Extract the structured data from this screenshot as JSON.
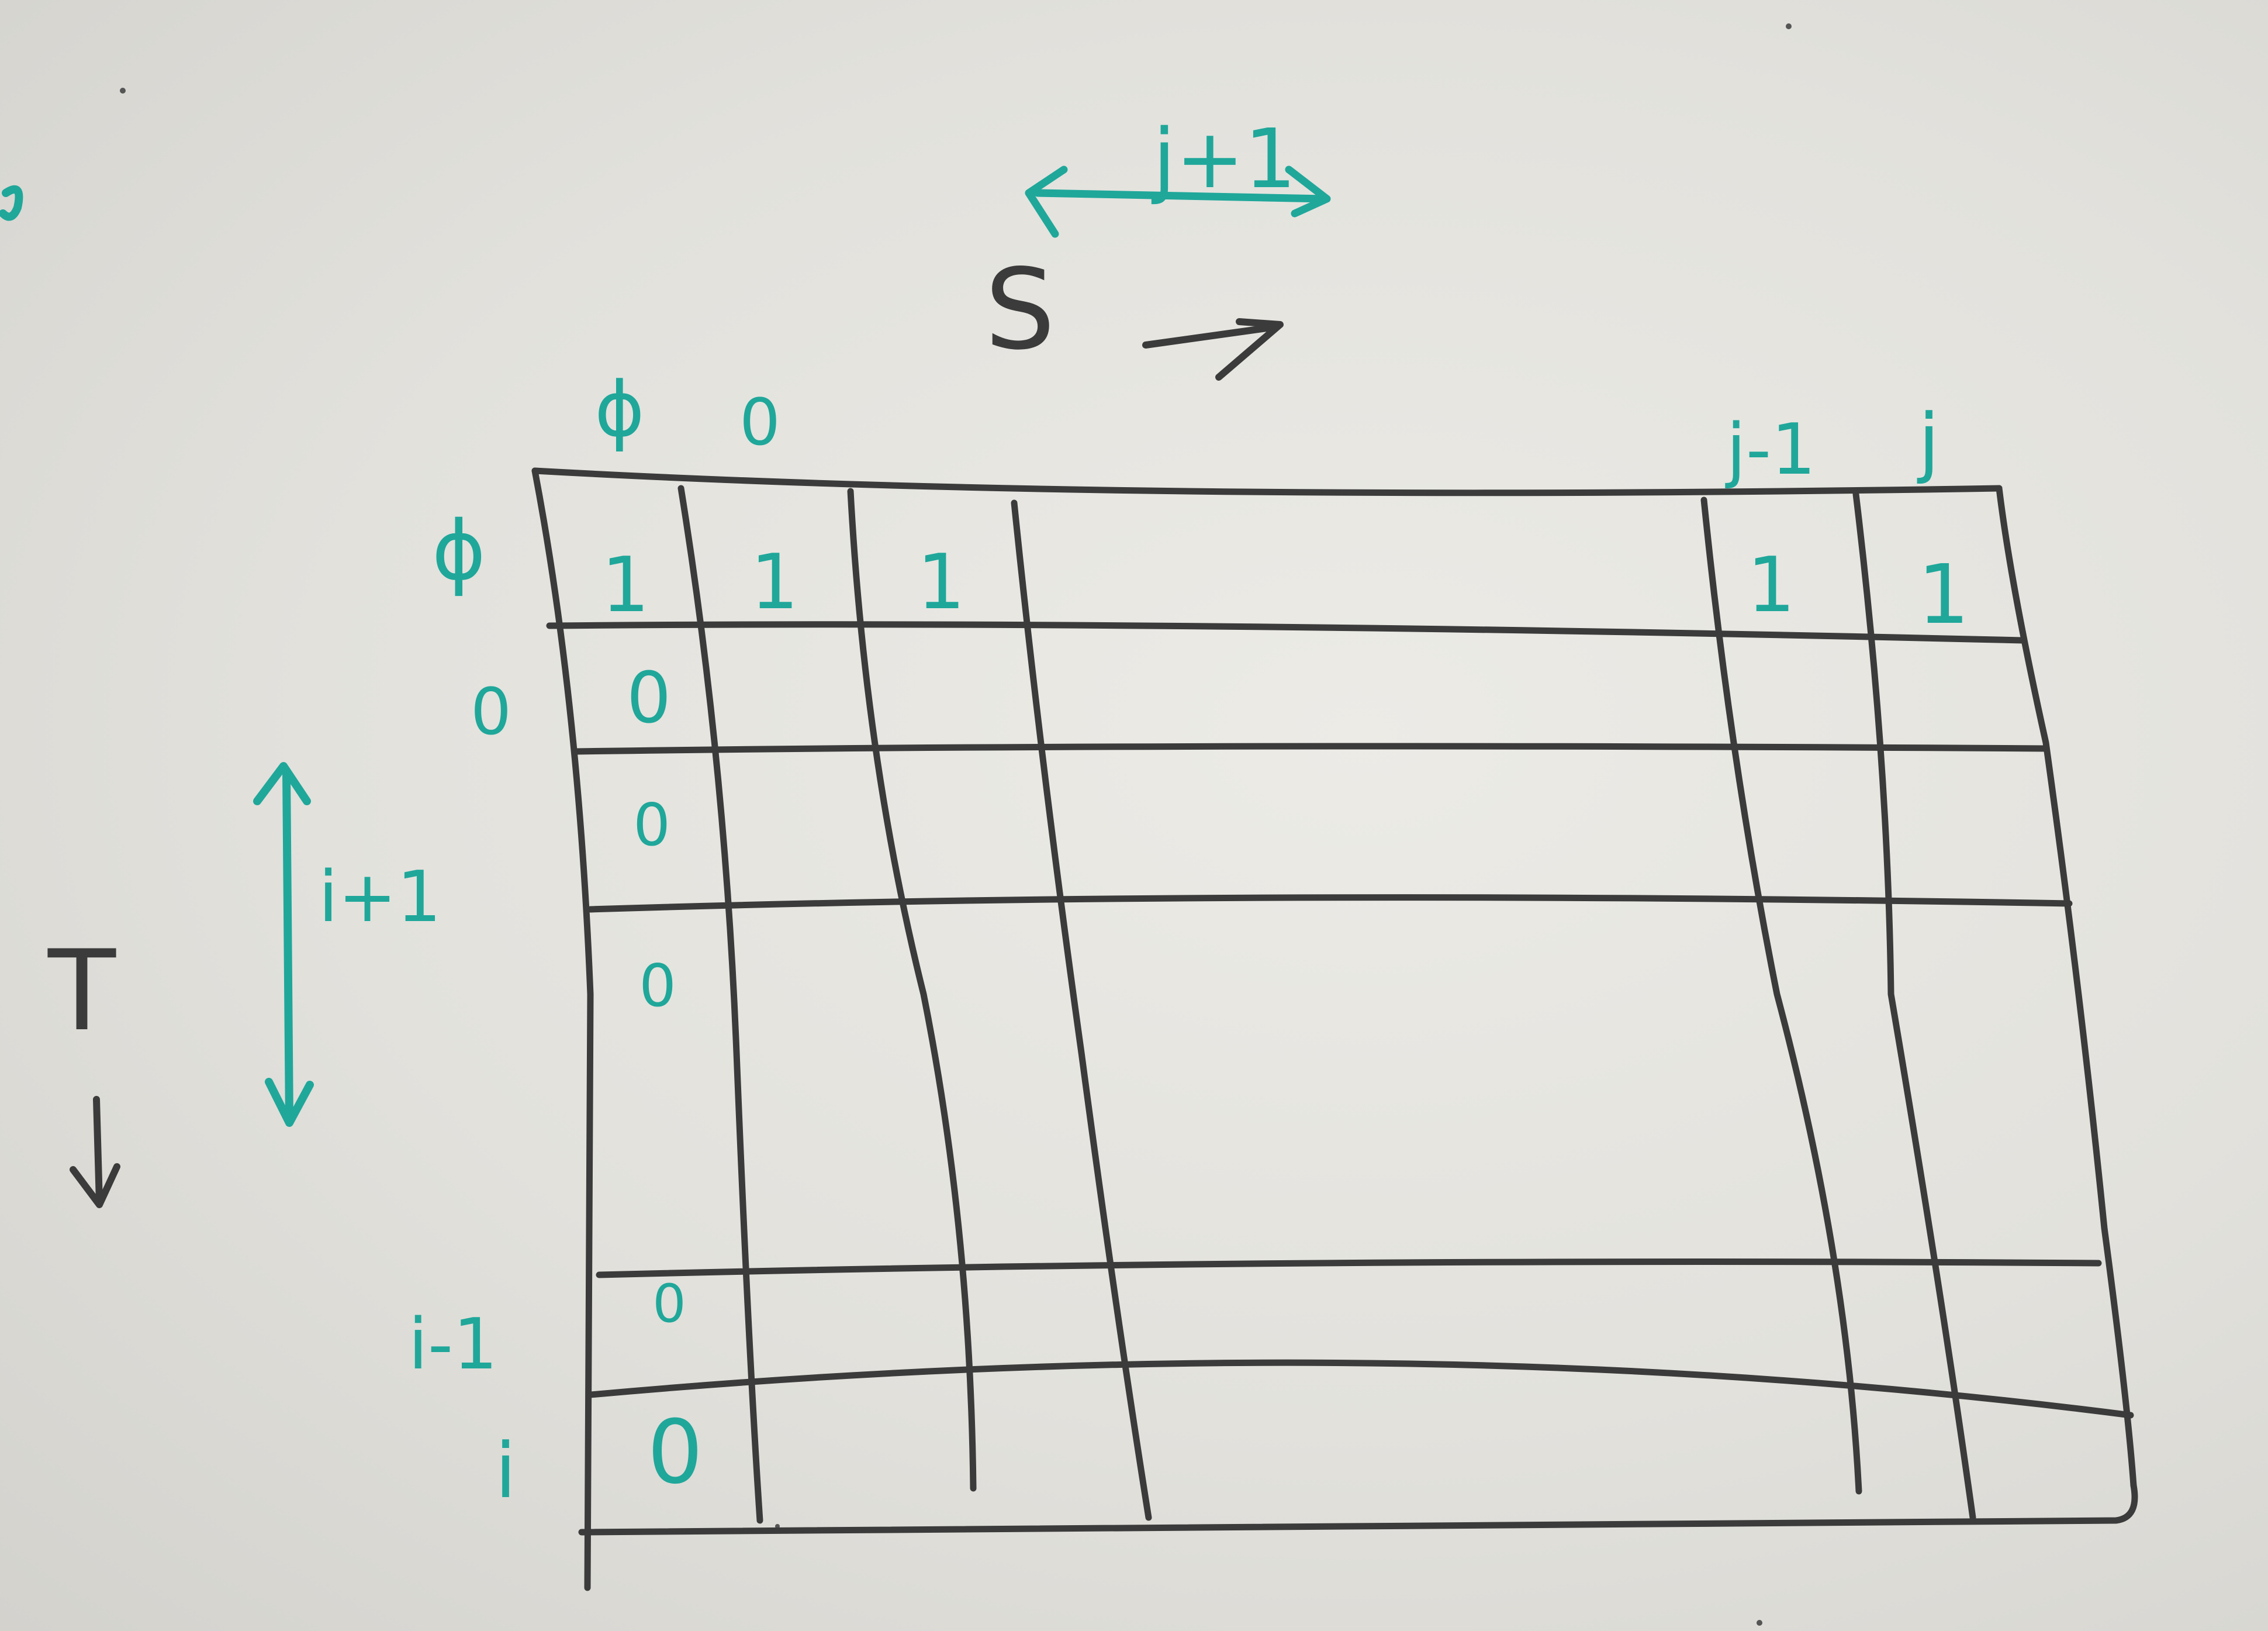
{
  "image": {
    "subject": "whiteboard-dp-table-sketch",
    "marker_colors": {
      "grid": "#3b3b3b",
      "labels": "#1fa79a",
      "board": "#e6e5e0"
    }
  },
  "labels": {
    "s_label": "S",
    "t_label": "T",
    "top_arrow_label": "j+1",
    "left_arrow_label": "i+1",
    "col_headers": [
      "ϕ",
      "0",
      "j-1",
      "j"
    ],
    "row_headers": [
      "ϕ",
      "0",
      "i-1",
      "i"
    ]
  },
  "cells": {
    "first_row_values": [
      "1",
      "1",
      "1",
      "1",
      "1"
    ],
    "first_col_values": [
      "0",
      "0",
      "0",
      "0",
      "0"
    ]
  }
}
